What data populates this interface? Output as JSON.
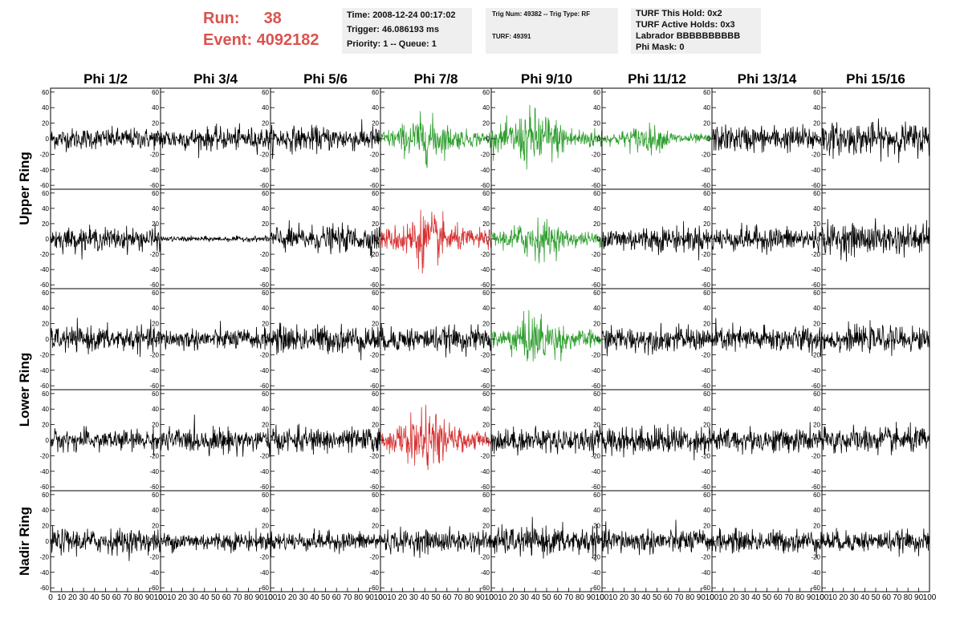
{
  "header": {
    "run_label": "Run:",
    "run_value": "38",
    "event_label": "Event:",
    "event_value": "4092182",
    "time": "Time: 2008-12-24 00:17:02",
    "trigger": "Trigger: 46.086193 ms",
    "priority": "Priority: 1 -- Queue: 1",
    "trig_num": "Trig Num: 49382 -- Trig Type: RF",
    "turf": "TURF: 49391",
    "turf_this_hold": "TURF This Hold: 0x2",
    "turf_active_holds": "TURF Active Holds: 0x3",
    "labrador": "Labrador BBBBBBBBBB",
    "phi_mask": "Phi Mask: 0"
  },
  "colors": {
    "header_red": "#d9534f",
    "trace_default": "#000000",
    "trace_green": "#2e9e2e",
    "trace_red": "#d62f2f",
    "infobox_bg": "#efefef"
  },
  "chart_data": {
    "type": "line",
    "columns": [
      "Phi 1/2",
      "Phi 3/4",
      "Phi 5/6",
      "Phi 7/8",
      "Phi 9/10",
      "Phi 11/12",
      "Phi 13/14",
      "Phi 15/16"
    ],
    "row_groups": [
      {
        "label": "Upper Ring",
        "rows": [
          0,
          1
        ]
      },
      {
        "label": "Lower Ring",
        "rows": [
          2,
          3
        ]
      },
      {
        "label": "Nadir Ring",
        "rows": [
          4
        ]
      }
    ],
    "xlim": [
      0,
      100
    ],
    "ylim": [
      -65,
      65
    ],
    "x_ticks": [
      0,
      10,
      20,
      30,
      40,
      50,
      60,
      70,
      80,
      90,
      100
    ],
    "y_ticks": [
      -60,
      -40,
      -20,
      0,
      20,
      40,
      60
    ],
    "panels": [
      [
        {
          "amp": 12,
          "color": "black"
        },
        {
          "amp": 13,
          "color": "black"
        },
        {
          "amp": 14,
          "color": "black"
        },
        {
          "amp": 20,
          "color": "green"
        },
        {
          "amp": 26,
          "color": "green"
        },
        {
          "amp": 12,
          "color": "green"
        },
        {
          "amp": 15,
          "color": "black"
        },
        {
          "amp": 18,
          "color": "black"
        }
      ],
      [
        {
          "amp": 13,
          "color": "black"
        },
        {
          "amp": 3,
          "color": "black"
        },
        {
          "amp": 15,
          "color": "black"
        },
        {
          "amp": 24,
          "color": "red"
        },
        {
          "amp": 18,
          "color": "green"
        },
        {
          "amp": 15,
          "color": "black"
        },
        {
          "amp": 14,
          "color": "black"
        },
        {
          "amp": 18,
          "color": "black"
        }
      ],
      [
        {
          "amp": 14,
          "color": "black"
        },
        {
          "amp": 12,
          "color": "black"
        },
        {
          "amp": 16,
          "color": "black"
        },
        {
          "amp": 14,
          "color": "black"
        },
        {
          "amp": 22,
          "color": "green"
        },
        {
          "amp": 14,
          "color": "black"
        },
        {
          "amp": 15,
          "color": "black"
        },
        {
          "amp": 14,
          "color": "black"
        }
      ],
      [
        {
          "amp": 12,
          "color": "black"
        },
        {
          "amp": 14,
          "color": "black"
        },
        {
          "amp": 14,
          "color": "black"
        },
        {
          "amp": 24,
          "color": "red"
        },
        {
          "amp": 14,
          "color": "black"
        },
        {
          "amp": 16,
          "color": "black"
        },
        {
          "amp": 14,
          "color": "black"
        },
        {
          "amp": 15,
          "color": "black"
        }
      ],
      [
        {
          "amp": 14,
          "color": "black"
        },
        {
          "amp": 11,
          "color": "black"
        },
        {
          "amp": 11,
          "color": "black"
        },
        {
          "amp": 13,
          "color": "black"
        },
        {
          "amp": 16,
          "color": "black"
        },
        {
          "amp": 14,
          "color": "black"
        },
        {
          "amp": 13,
          "color": "black"
        },
        {
          "amp": 12,
          "color": "black"
        }
      ]
    ]
  }
}
